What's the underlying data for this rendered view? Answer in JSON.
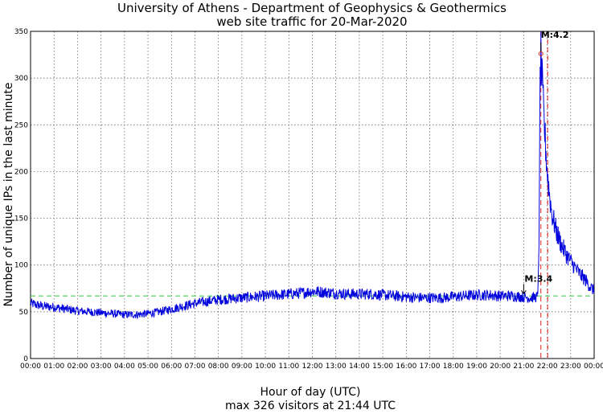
{
  "chart_data": {
    "type": "line",
    "title": "University of Athens - Department of Geophysics & Geothermics",
    "subtitle": "web site traffic for 20-Mar-2020",
    "xlabel": "Hour of day (UTC)",
    "footer": "max 326 visitors at 21:44 UTC",
    "ylabel": "Number of unique IPs in the last minute",
    "xlim_hours": [
      0,
      24
    ],
    "ylim": [
      0,
      350
    ],
    "x_ticks": [
      "00:00",
      "01:00",
      "02:00",
      "03:00",
      "04:00",
      "05:00",
      "06:00",
      "07:00",
      "08:00",
      "09:00",
      "10:00",
      "11:00",
      "12:00",
      "13:00",
      "14:00",
      "15:00",
      "16:00",
      "17:00",
      "18:00",
      "19:00",
      "20:00",
      "21:00",
      "22:00",
      "23:00",
      "00:00"
    ],
    "y_ticks": [
      0,
      50,
      100,
      150,
      200,
      250,
      300,
      350
    ],
    "grid": true,
    "baseline": 67,
    "max": {
      "value": 326,
      "time": "21:44"
    },
    "events": [
      {
        "label": "M:3.4",
        "time_hours": 21.0,
        "value": 66
      },
      {
        "label": "M:4.2",
        "time_hours": 21.73,
        "value": 326
      }
    ],
    "event_line_hours": 22.02,
    "series": [
      {
        "color": "#0000dd",
        "points": [
          [
            0.0,
            59
          ],
          [
            0.5,
            56
          ],
          [
            1.0,
            55
          ],
          [
            1.5,
            53
          ],
          [
            2.0,
            51
          ],
          [
            2.5,
            50
          ],
          [
            3.0,
            49
          ],
          [
            3.5,
            48
          ],
          [
            4.0,
            47
          ],
          [
            4.5,
            47
          ],
          [
            5.0,
            48
          ],
          [
            5.5,
            50
          ],
          [
            6.0,
            53
          ],
          [
            6.5,
            56
          ],
          [
            7.0,
            59
          ],
          [
            7.5,
            61
          ],
          [
            8.0,
            63
          ],
          [
            8.5,
            64
          ],
          [
            9.0,
            65
          ],
          [
            9.5,
            66
          ],
          [
            10.0,
            67
          ],
          [
            10.5,
            68
          ],
          [
            11.0,
            69
          ],
          [
            11.5,
            70
          ],
          [
            12.0,
            72
          ],
          [
            12.5,
            71
          ],
          [
            13.0,
            70
          ],
          [
            13.5,
            69
          ],
          [
            14.0,
            69
          ],
          [
            14.5,
            69
          ],
          [
            15.0,
            68
          ],
          [
            15.5,
            67
          ],
          [
            16.0,
            66
          ],
          [
            16.5,
            65
          ],
          [
            17.0,
            65
          ],
          [
            17.5,
            65
          ],
          [
            18.0,
            66
          ],
          [
            18.5,
            67
          ],
          [
            19.0,
            68
          ],
          [
            19.5,
            68
          ],
          [
            20.0,
            67
          ],
          [
            20.5,
            67
          ],
          [
            21.0,
            66
          ],
          [
            21.3,
            65
          ],
          [
            21.6,
            66
          ],
          [
            21.66,
            140
          ],
          [
            21.7,
            300
          ],
          [
            21.73,
            326
          ],
          [
            21.8,
            285
          ],
          [
            21.9,
            240
          ],
          [
            22.0,
            200
          ],
          [
            22.1,
            175
          ],
          [
            22.2,
            155
          ],
          [
            22.4,
            135
          ],
          [
            22.6,
            122
          ],
          [
            22.8,
            112
          ],
          [
            23.0,
            104
          ],
          [
            23.2,
            97
          ],
          [
            23.4,
            90
          ],
          [
            23.6,
            85
          ],
          [
            23.8,
            78
          ],
          [
            24.0,
            72
          ]
        ]
      }
    ]
  }
}
